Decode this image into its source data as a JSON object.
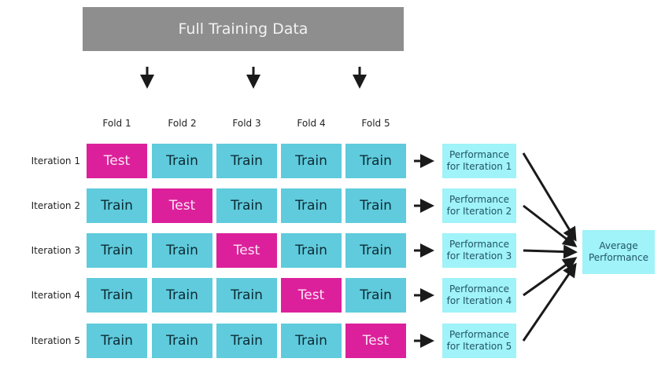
{
  "header": {
    "title": "Full Training Data"
  },
  "folds": [
    "Fold 1",
    "Fold 2",
    "Fold 3",
    "Fold 4",
    "Fold 5"
  ],
  "iterations": [
    {
      "label": "Iteration 1",
      "cells": [
        "Test",
        "Train",
        "Train",
        "Train",
        "Train"
      ],
      "performance": "Performance for Iteration 1"
    },
    {
      "label": "Iteration 2",
      "cells": [
        "Train",
        "Test",
        "Train",
        "Train",
        "Train"
      ],
      "performance": "Performance for Iteration 2"
    },
    {
      "label": "Iteration 3",
      "cells": [
        "Train",
        "Train",
        "Test",
        "Train",
        "Train"
      ],
      "performance": "Performance for Iteration 3"
    },
    {
      "label": "Iteration 4",
      "cells": [
        "Train",
        "Train",
        "Train",
        "Test",
        "Train"
      ],
      "performance": "Performance for Iteration 4"
    },
    {
      "label": "Iteration 5",
      "cells": [
        "Train",
        "Train",
        "Train",
        "Train",
        "Test"
      ],
      "performance": "Performance for Iteration 5"
    }
  ],
  "average": {
    "label": "Average Performance"
  },
  "colors": {
    "train": "#5fcbdc",
    "test": "#dc209b",
    "performance": "#9ff3f9",
    "header": "#8e8e8e"
  }
}
